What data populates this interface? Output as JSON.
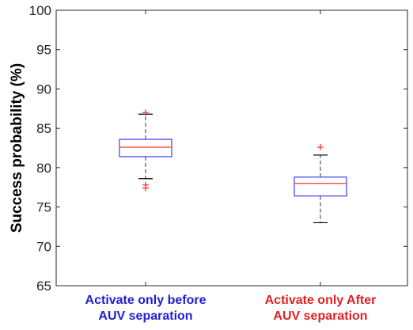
{
  "chart_data": {
    "type": "boxplot",
    "ylabel": "Success probability (%)",
    "ylim": [
      65,
      100
    ],
    "yticks": [
      65,
      70,
      75,
      80,
      85,
      90,
      95,
      100
    ],
    "grid": false,
    "categories": [
      {
        "label_lines": [
          "Activate only before",
          "AUV separation"
        ],
        "label_color": "#1f1fcf",
        "min": 78.6,
        "q1": 81.4,
        "median": 82.6,
        "q3": 83.6,
        "max": 86.8,
        "outliers": [
          77.4,
          77.8,
          87.0
        ]
      },
      {
        "label_lines": [
          "Activate only After",
          "AUV separation"
        ],
        "label_color": "#e02020",
        "min": 73.0,
        "q1": 76.4,
        "median": 78.0,
        "q3": 78.8,
        "max": 81.6,
        "outliers": [
          82.6
        ]
      }
    ],
    "colors": {
      "box": "#3b3bff",
      "median": "#ff3030",
      "whisker": "#000000",
      "outlier": "#ff3030",
      "axis": "#262626"
    }
  }
}
